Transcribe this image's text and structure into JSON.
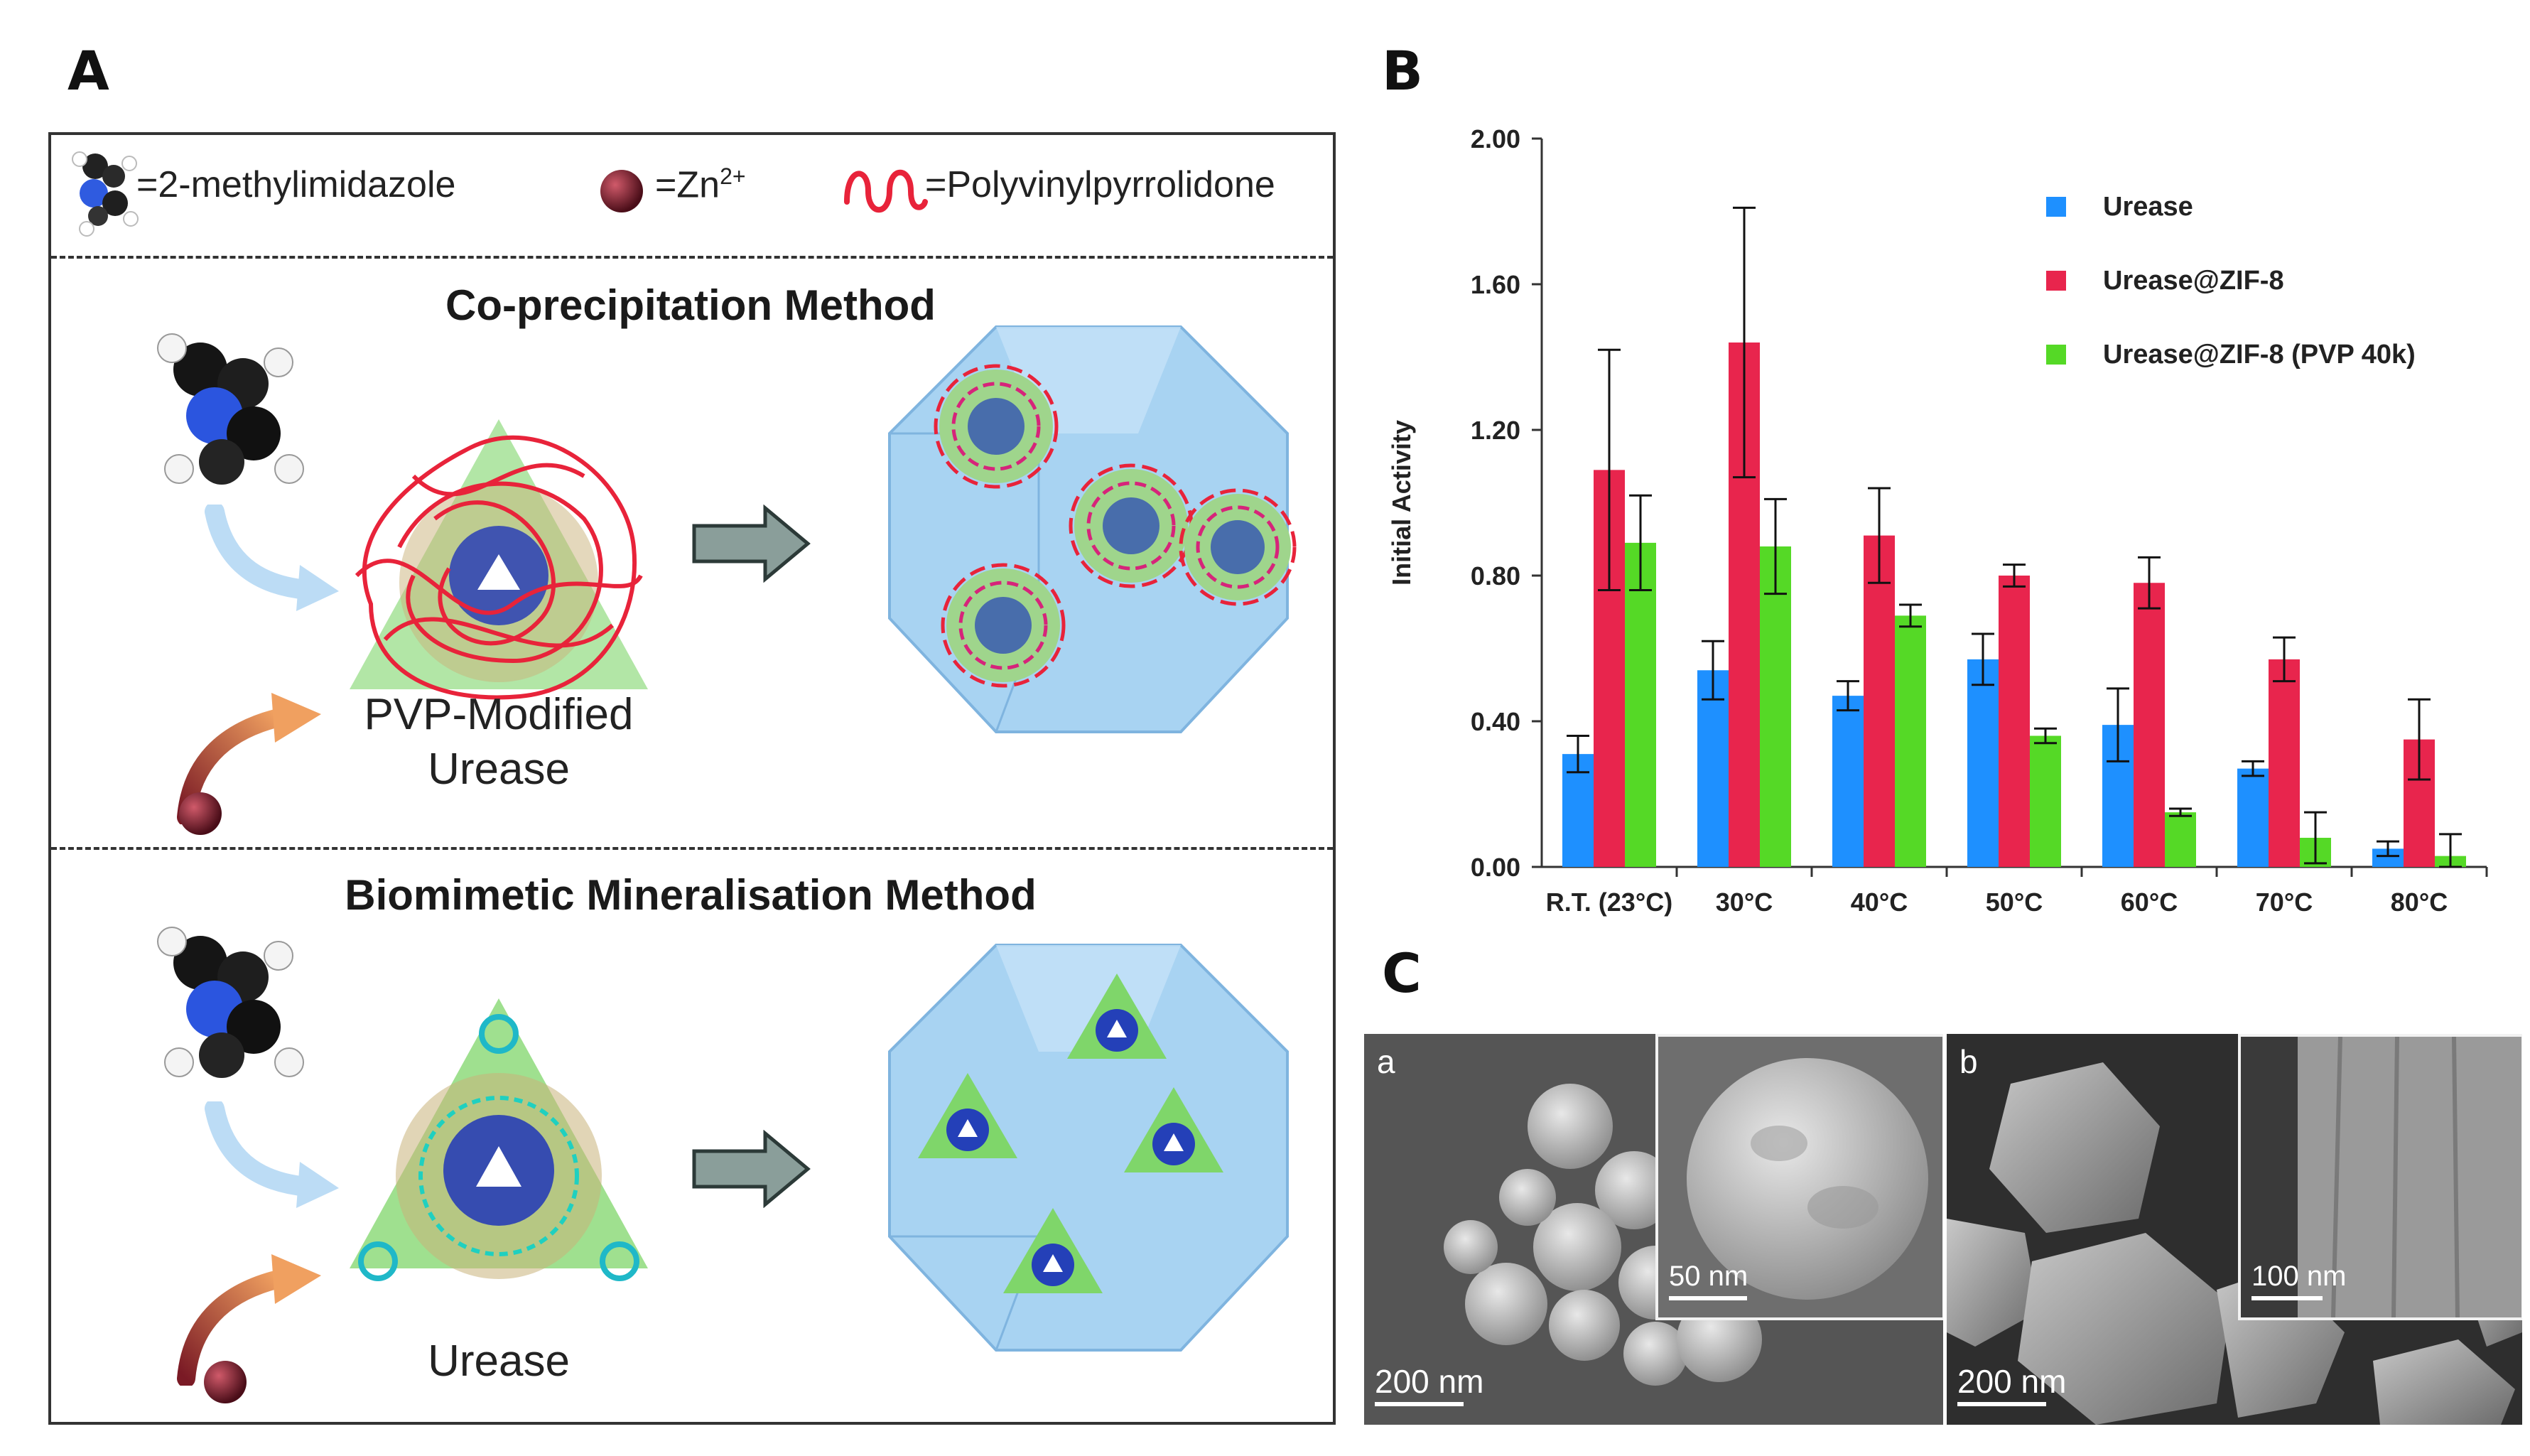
{
  "panels": {
    "a": {
      "letter": "A",
      "legend": {
        "item1": "=2-methylimidazole",
        "item2_prefix": "=Zn",
        "item2_sup": "2+",
        "item3": "=Polyvinylpyrrolidone"
      },
      "top_method": {
        "title": "Co-precipitation Method",
        "caption_line1": "PVP-Modified",
        "caption_line2": "Urease"
      },
      "bottom_method": {
        "title": "Biomimetic Mineralisation Method",
        "caption": "Urease"
      }
    },
    "b": {
      "letter": "B"
    },
    "c": {
      "letter": "C",
      "sub_a": {
        "label": "a",
        "scale": "200 nm",
        "inset_scale": "50 nm"
      },
      "sub_b": {
        "label": "b",
        "scale": "200 nm",
        "inset_scale": "100 nm"
      }
    }
  },
  "colors": {
    "urease": "#1e90ff",
    "urease_zif8": "#e8254d",
    "urease_zif8_pvp": "#55d926"
  },
  "chart_data": {
    "type": "bar",
    "title": "",
    "xlabel": "",
    "ylabel": "Initial Activity",
    "ylim": [
      0,
      2.0
    ],
    "yticks": [
      "0.00",
      "0.40",
      "0.80",
      "1.20",
      "1.60",
      "2.00"
    ],
    "categories": [
      "R.T. (23°C)",
      "30°C",
      "40°C",
      "50°C",
      "60°C",
      "70°C",
      "80°C"
    ],
    "series": [
      {
        "name": "Urease",
        "color": "#1e90ff",
        "values": [
          0.31,
          0.54,
          0.47,
          0.57,
          0.39,
          0.27,
          0.05
        ],
        "errors": [
          0.05,
          0.08,
          0.04,
          0.07,
          0.1,
          0.02,
          0.02
        ]
      },
      {
        "name": "Urease@ZIF-8",
        "color": "#e8254d",
        "values": [
          1.09,
          1.44,
          0.91,
          0.8,
          0.78,
          0.57,
          0.35
        ],
        "errors": [
          0.33,
          0.37,
          0.13,
          0.03,
          0.07,
          0.06,
          0.11
        ]
      },
      {
        "name": "Urease@ZIF-8 (PVP 40k)",
        "color": "#55d926",
        "values": [
          0.89,
          0.88,
          0.69,
          0.36,
          0.15,
          0.08,
          0.03
        ],
        "errors": [
          0.13,
          0.13,
          0.03,
          0.02,
          0.01,
          0.07,
          0.06
        ]
      }
    ],
    "legend_position": "top-right"
  }
}
